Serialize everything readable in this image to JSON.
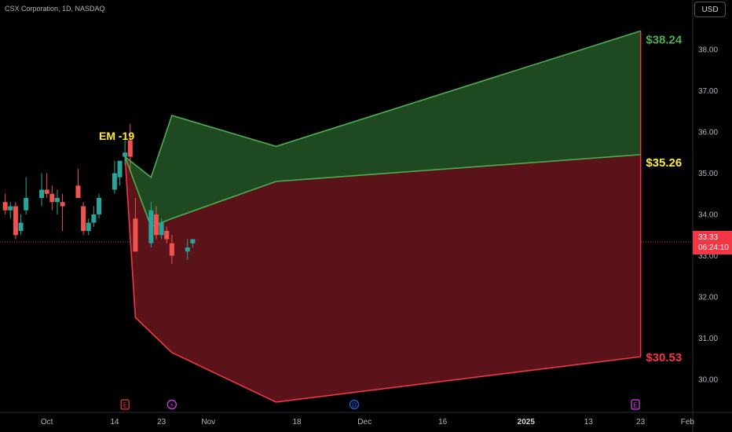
{
  "symbol_title": "CSX Corporation, 1D, NASDAQ",
  "currency_button": "USD",
  "price_label": {
    "price": "33.33",
    "countdown": "06:24:10"
  },
  "event_markers": [
    {
      "letter": "E",
      "date": "2024-10-16",
      "color": "#f23645"
    },
    {
      "letter": "⚡",
      "date": "2024-10-25",
      "color": "#e040fb"
    },
    {
      "letter": "D",
      "date": "2024-11-29",
      "color": "#2962ff"
    },
    {
      "letter": "E",
      "date": "2025-01-22",
      "color": "#e040fb"
    }
  ],
  "colors": {
    "background": "#000000",
    "up_candle": "#26a69a",
    "down_candle": "#ef5350",
    "upper_zone_fill": "#1f4a21",
    "lower_zone_fill": "#5a1318",
    "upper_line": "#4caf50",
    "lower_line": "#f23645",
    "annotation_yellow": "#ffeb3b"
  },
  "chart_data": {
    "type": "candlestick",
    "y_axis": {
      "ticks": [
        "30.00",
        "31.00",
        "32.00",
        "33.00",
        "34.00",
        "35.00",
        "36.00",
        "37.00",
        "38.00"
      ],
      "ylim": [
        29.2,
        39.2
      ]
    },
    "x_axis": {
      "ticks": [
        {
          "label": "Oct",
          "date": "2024-10-01"
        },
        {
          "label": "14",
          "date": "2024-10-14"
        },
        {
          "label": "23",
          "date": "2024-10-23"
        },
        {
          "label": "Nov",
          "date": "2024-11-01"
        },
        {
          "label": "18",
          "date": "2024-11-18"
        },
        {
          "label": "Dec",
          "date": "2024-12-01"
        },
        {
          "label": "16",
          "date": "2024-12-16"
        },
        {
          "label": "2025",
          "date": "2025-01-01"
        },
        {
          "label": "13",
          "date": "2025-01-13"
        },
        {
          "label": "23",
          "date": "2025-01-23"
        },
        {
          "label": "Feb",
          "date": "2025-02-01"
        }
      ],
      "xlim": [
        "2024-09-22",
        "2025-02-02"
      ]
    },
    "candles": [
      {
        "date": "2024-09-23",
        "open": 34.3,
        "high": 34.5,
        "low": 34.0,
        "close": 34.1
      },
      {
        "date": "2024-09-24",
        "open": 34.1,
        "high": 34.3,
        "low": 33.9,
        "close": 34.2
      },
      {
        "date": "2024-09-25",
        "open": 34.2,
        "high": 34.3,
        "low": 33.4,
        "close": 33.5
      },
      {
        "date": "2024-09-26",
        "open": 33.6,
        "high": 34.0,
        "low": 33.5,
        "close": 33.8
      },
      {
        "date": "2024-09-27",
        "open": 34.1,
        "high": 34.9,
        "low": 34.0,
        "close": 34.4
      },
      {
        "date": "2024-09-30",
        "open": 34.4,
        "high": 35.0,
        "low": 34.2,
        "close": 34.6
      },
      {
        "date": "2024-10-01",
        "open": 34.6,
        "high": 35.0,
        "low": 34.4,
        "close": 34.5
      },
      {
        "date": "2024-10-02",
        "open": 34.5,
        "high": 34.7,
        "low": 34.1,
        "close": 34.3
      },
      {
        "date": "2024-10-03",
        "open": 34.3,
        "high": 34.6,
        "low": 34.0,
        "close": 34.4
      },
      {
        "date": "2024-10-04",
        "open": 34.3,
        "high": 34.5,
        "low": 33.6,
        "close": 34.2
      },
      {
        "date": "2024-10-07",
        "open": 34.7,
        "high": 35.1,
        "low": 34.4,
        "close": 34.4
      },
      {
        "date": "2024-10-08",
        "open": 34.2,
        "high": 34.3,
        "low": 33.5,
        "close": 33.6
      },
      {
        "date": "2024-10-09",
        "open": 33.6,
        "high": 33.9,
        "low": 33.5,
        "close": 33.8
      },
      {
        "date": "2024-10-10",
        "open": 33.8,
        "high": 34.2,
        "low": 33.7,
        "close": 34.0
      },
      {
        "date": "2024-10-11",
        "open": 34.0,
        "high": 34.5,
        "low": 33.9,
        "close": 34.4
      },
      {
        "date": "2024-10-14",
        "open": 34.6,
        "high": 35.3,
        "low": 34.5,
        "close": 35.0
      },
      {
        "date": "2024-10-15",
        "open": 34.9,
        "high": 35.3,
        "low": 34.7,
        "close": 35.3
      },
      {
        "date": "2024-10-16",
        "open": 35.4,
        "high": 35.9,
        "low": 35.2,
        "close": 35.5
      },
      {
        "date": "2024-10-17",
        "open": 35.8,
        "high": 36.2,
        "low": 35.1,
        "close": 35.4
      },
      {
        "date": "2024-10-18",
        "open": 33.9,
        "high": 34.4,
        "low": 33.1,
        "close": 33.1
      },
      {
        "date": "2024-10-21",
        "open": 33.3,
        "high": 34.3,
        "low": 33.2,
        "close": 34.1
      },
      {
        "date": "2024-10-22",
        "open": 34.0,
        "high": 34.2,
        "low": 33.4,
        "close": 33.5
      },
      {
        "date": "2024-10-23",
        "open": 33.5,
        "high": 33.9,
        "low": 33.4,
        "close": 33.8
      },
      {
        "date": "2024-10-24",
        "open": 33.6,
        "high": 33.7,
        "low": 33.3,
        "close": 33.4
      },
      {
        "date": "2024-10-25",
        "open": 33.3,
        "high": 33.5,
        "low": 32.8,
        "close": 33.0
      },
      {
        "date": "2024-10-28",
        "open": 33.1,
        "high": 33.4,
        "low": 32.9,
        "close": 33.2
      },
      {
        "date": "2024-10-29",
        "open": 33.3,
        "high": 33.4,
        "low": 33.2,
        "close": 33.4
      }
    ],
    "current_price": 33.33,
    "upper_band": [
      {
        "date": "2024-10-16",
        "value": 35.4
      },
      {
        "date": "2024-10-21",
        "value": 34.9
      },
      {
        "date": "2024-10-25",
        "value": 36.4
      },
      {
        "date": "2024-11-14",
        "value": 35.65
      },
      {
        "date": "2025-01-23",
        "value": 38.45
      }
    ],
    "mid_line": [
      {
        "date": "2024-10-16",
        "value": 35.4
      },
      {
        "date": "2024-10-21",
        "value": 33.7
      },
      {
        "date": "2024-10-25",
        "value": 33.9
      },
      {
        "date": "2024-11-14",
        "value": 34.8
      },
      {
        "date": "2025-01-23",
        "value": 35.45
      }
    ],
    "lower_band": [
      {
        "date": "2024-10-16",
        "value": 35.4
      },
      {
        "date": "2024-10-18",
        "value": 31.5
      },
      {
        "date": "2024-10-25",
        "value": 30.65
      },
      {
        "date": "2024-11-14",
        "value": 29.45
      },
      {
        "date": "2025-01-23",
        "value": 30.55
      }
    ],
    "annotations": [
      {
        "text": "EM -19",
        "date": "2024-10-11",
        "value": 36.0,
        "color": "#ffeb3b"
      },
      {
        "text": "$38.24",
        "date": "2025-01-24",
        "value": 38.24,
        "color": "#4caf50"
      },
      {
        "text": "$35.26",
        "date": "2025-01-24",
        "value": 35.26,
        "color": "#ffeb3b"
      },
      {
        "text": "$30.53",
        "date": "2025-01-24",
        "value": 30.53,
        "color": "#f23645"
      }
    ]
  }
}
